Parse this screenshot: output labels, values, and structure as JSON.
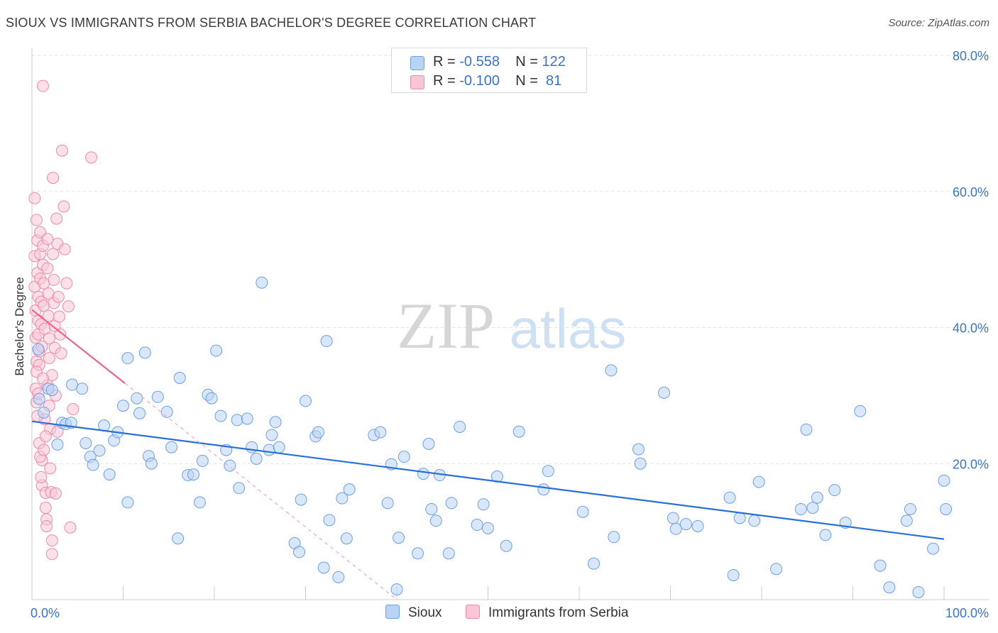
{
  "title": "SIOUX VS IMMIGRANTS FROM SERBIA BACHELOR'S DEGREE CORRELATION CHART",
  "source": "Source: ZipAtlas.com",
  "watermark": {
    "zip": "ZIP",
    "atlas": "atlas"
  },
  "legend": {
    "rows": [
      {
        "r_label": "R =",
        "r_value": "-0.558",
        "n_label": "N =",
        "n_value": "122"
      },
      {
        "r_label": "R =",
        "r_value": "-0.100",
        "n_label": "N =",
        "n_value": " 81"
      }
    ]
  },
  "bottom_legend": {
    "sioux": "Sioux",
    "serbia": "Immigrants from Serbia"
  },
  "colors": {
    "sioux_fill": "#b9d3f5",
    "sioux_stroke": "#6f9fe0",
    "sioux_line": "#2a6fd6",
    "serbia_fill": "#f9c6d6",
    "serbia_stroke": "#ec8aab",
    "serbia_line": "#e8628f",
    "tick_text": "#3b73c6"
  },
  "chart_data": {
    "type": "scatter",
    "title": "SIOUX VS IMMIGRANTS FROM SERBIA BACHELOR'S DEGREE CORRELATION CHART",
    "xlabel": "",
    "ylabel": "Bachelor's Degree",
    "xlim": [
      0,
      100
    ],
    "ylim": [
      0,
      80
    ],
    "x_tick_labels": [
      "0.0%",
      "100.0%"
    ],
    "y_ticks": [
      20,
      40,
      60,
      80
    ],
    "y_tick_labels": [
      "20.0%",
      "40.0%",
      "60.0%",
      "80.0%"
    ],
    "grid": true,
    "legend_position": "top-center",
    "series": [
      {
        "name": "Sioux",
        "points": [
          [
            0.7,
            36.8
          ],
          [
            0.8,
            29.5
          ],
          [
            1.3,
            27.5
          ],
          [
            1.8,
            31.0
          ],
          [
            2.2,
            30.8
          ],
          [
            2.8,
            22.8
          ],
          [
            3.3,
            26.0
          ],
          [
            3.7,
            25.8
          ],
          [
            4.3,
            26.0
          ],
          [
            4.4,
            31.6
          ],
          [
            5.5,
            31.0
          ],
          [
            5.9,
            23.0
          ],
          [
            6.4,
            21.0
          ],
          [
            6.7,
            19.8
          ],
          [
            7.4,
            21.9
          ],
          [
            7.9,
            25.6
          ],
          [
            8.5,
            18.4
          ],
          [
            9.0,
            23.4
          ],
          [
            9.4,
            24.6
          ],
          [
            10.0,
            28.5
          ],
          [
            10.5,
            35.5
          ],
          [
            10.5,
            14.3
          ],
          [
            11.5,
            29.6
          ],
          [
            11.8,
            27.4
          ],
          [
            12.4,
            36.3
          ],
          [
            12.8,
            21.1
          ],
          [
            13.1,
            20.0
          ],
          [
            13.8,
            29.8
          ],
          [
            14.8,
            27.6
          ],
          [
            15.3,
            22.4
          ],
          [
            16.0,
            9.0
          ],
          [
            16.2,
            32.6
          ],
          [
            17.1,
            18.3
          ],
          [
            17.7,
            18.4
          ],
          [
            18.4,
            14.3
          ],
          [
            18.7,
            20.4
          ],
          [
            19.3,
            30.1
          ],
          [
            19.7,
            29.6
          ],
          [
            20.2,
            36.6
          ],
          [
            20.7,
            27.0
          ],
          [
            21.3,
            22.0
          ],
          [
            21.7,
            19.7
          ],
          [
            22.5,
            26.4
          ],
          [
            22.7,
            16.4
          ],
          [
            23.6,
            26.6
          ],
          [
            24.1,
            22.4
          ],
          [
            24.6,
            20.7
          ],
          [
            25.2,
            46.6
          ],
          [
            26.0,
            22.0
          ],
          [
            26.3,
            24.2
          ],
          [
            26.7,
            26.1
          ],
          [
            27.1,
            22.4
          ],
          [
            28.8,
            8.3
          ],
          [
            29.3,
            7.0
          ],
          [
            29.5,
            14.7
          ],
          [
            30.0,
            29.2
          ],
          [
            31.1,
            24.0
          ],
          [
            31.4,
            24.6
          ],
          [
            32.0,
            4.7
          ],
          [
            32.3,
            38.0
          ],
          [
            32.6,
            11.7
          ],
          [
            33.6,
            3.3
          ],
          [
            34.0,
            14.9
          ],
          [
            34.5,
            9.0
          ],
          [
            34.8,
            16.2
          ],
          [
            37.5,
            24.2
          ],
          [
            38.2,
            24.6
          ],
          [
            39.0,
            14.2
          ],
          [
            39.4,
            19.9
          ],
          [
            40.0,
            1.5
          ],
          [
            40.2,
            9.1
          ],
          [
            40.8,
            21.0
          ],
          [
            42.3,
            6.8
          ],
          [
            42.9,
            18.5
          ],
          [
            43.5,
            22.9
          ],
          [
            43.8,
            13.3
          ],
          [
            44.3,
            11.6
          ],
          [
            44.7,
            18.3
          ],
          [
            45.7,
            6.8
          ],
          [
            46.0,
            14.2
          ],
          [
            46.9,
            25.4
          ],
          [
            48.8,
            11.0
          ],
          [
            49.5,
            14.0
          ],
          [
            50.0,
            10.5
          ],
          [
            51.0,
            18.1
          ],
          [
            52.0,
            7.9
          ],
          [
            53.4,
            24.7
          ],
          [
            56.1,
            16.2
          ],
          [
            56.6,
            18.9
          ],
          [
            60.4,
            12.9
          ],
          [
            61.6,
            5.3
          ],
          [
            63.5,
            33.7
          ],
          [
            63.8,
            9.2
          ],
          [
            66.5,
            22.1
          ],
          [
            66.7,
            20.0
          ],
          [
            69.3,
            30.4
          ],
          [
            70.3,
            12.0
          ],
          [
            70.6,
            10.4
          ],
          [
            71.7,
            11.1
          ],
          [
            73.0,
            10.8
          ],
          [
            76.5,
            15.0
          ],
          [
            76.9,
            3.6
          ],
          [
            77.6,
            12.0
          ],
          [
            79.2,
            11.6
          ],
          [
            79.7,
            17.3
          ],
          [
            81.6,
            4.5
          ],
          [
            84.3,
            13.3
          ],
          [
            84.9,
            25.0
          ],
          [
            85.6,
            13.5
          ],
          [
            86.1,
            15.0
          ],
          [
            87.0,
            9.5
          ],
          [
            88.0,
            16.1
          ],
          [
            89.2,
            11.3
          ],
          [
            90.8,
            27.7
          ],
          [
            93.0,
            5.0
          ],
          [
            94.0,
            1.8
          ],
          [
            95.9,
            11.6
          ],
          [
            96.3,
            13.3
          ],
          [
            97.2,
            1.1
          ],
          [
            98.8,
            7.5
          ],
          [
            100.0,
            17.5
          ],
          [
            100.2,
            13.3
          ]
        ],
        "trendline": {
          "x": [
            0,
            100
          ],
          "y": [
            26.2,
            8.9
          ]
        }
      },
      {
        "name": "Immigrants from Serbia",
        "points": [
          [
            0.3,
            59.0
          ],
          [
            0.3,
            50.5
          ],
          [
            0.3,
            46.0
          ],
          [
            0.4,
            42.5
          ],
          [
            0.4,
            38.5
          ],
          [
            0.5,
            35.0
          ],
          [
            0.5,
            29.0
          ],
          [
            0.5,
            55.8
          ],
          [
            0.6,
            52.8
          ],
          [
            0.6,
            48.0
          ],
          [
            0.7,
            44.5
          ],
          [
            0.7,
            41.0
          ],
          [
            0.7,
            39.0
          ],
          [
            0.8,
            36.5
          ],
          [
            0.8,
            34.5
          ],
          [
            0.9,
            54.0
          ],
          [
            0.9,
            50.8
          ],
          [
            0.9,
            47.2
          ],
          [
            1.0,
            43.8
          ],
          [
            1.0,
            40.5
          ],
          [
            1.1,
            37.2
          ],
          [
            1.1,
            20.5
          ],
          [
            1.1,
            16.8
          ],
          [
            1.2,
            75.5
          ],
          [
            1.2,
            52.0
          ],
          [
            1.2,
            49.2
          ],
          [
            1.3,
            46.5
          ],
          [
            1.3,
            43.2
          ],
          [
            1.4,
            39.8
          ],
          [
            1.4,
            26.5
          ],
          [
            1.5,
            15.7
          ],
          [
            1.5,
            13.5
          ],
          [
            1.6,
            11.8
          ],
          [
            1.6,
            10.8
          ],
          [
            1.7,
            53.0
          ],
          [
            1.7,
            48.7
          ],
          [
            1.8,
            45.0
          ],
          [
            1.8,
            41.7
          ],
          [
            1.9,
            38.4
          ],
          [
            1.9,
            35.5
          ],
          [
            2.0,
            25.1
          ],
          [
            2.0,
            19.3
          ],
          [
            2.1,
            15.8
          ],
          [
            2.2,
            8.7
          ],
          [
            2.2,
            6.7
          ],
          [
            2.3,
            62.0
          ],
          [
            2.3,
            50.8
          ],
          [
            2.4,
            47.0
          ],
          [
            2.4,
            43.6
          ],
          [
            2.5,
            40.2
          ],
          [
            2.5,
            37.0
          ],
          [
            2.6,
            15.6
          ],
          [
            2.7,
            56.0
          ],
          [
            2.8,
            52.3
          ],
          [
            2.9,
            44.5
          ],
          [
            3.0,
            41.6
          ],
          [
            3.1,
            39.0
          ],
          [
            3.2,
            36.2
          ],
          [
            3.3,
            66.0
          ],
          [
            3.5,
            57.8
          ],
          [
            3.6,
            51.5
          ],
          [
            3.8,
            46.5
          ],
          [
            4.0,
            43.1
          ],
          [
            4.2,
            10.6
          ],
          [
            4.5,
            28.0
          ],
          [
            6.5,
            65.0
          ],
          [
            0.4,
            31.0
          ],
          [
            0.6,
            27.0
          ],
          [
            0.8,
            23.0
          ],
          [
            0.9,
            21.0
          ],
          [
            1.0,
            18.0
          ],
          [
            1.3,
            22.0
          ],
          [
            1.5,
            24.0
          ],
          [
            1.7,
            31.5
          ],
          [
            1.9,
            28.5
          ],
          [
            2.2,
            33.0
          ],
          [
            2.6,
            30.0
          ],
          [
            0.5,
            33.5
          ],
          [
            0.7,
            30.3
          ],
          [
            1.2,
            32.5
          ],
          [
            2.8,
            24.7
          ]
        ],
        "trendline": {
          "x": [
            0,
            10.2
          ],
          "y": [
            42.6,
            31.8
          ],
          "dashed_extension": {
            "x": [
              10.2,
              40.0
            ],
            "y": [
              31.8,
              0.0
            ]
          }
        }
      }
    ]
  }
}
